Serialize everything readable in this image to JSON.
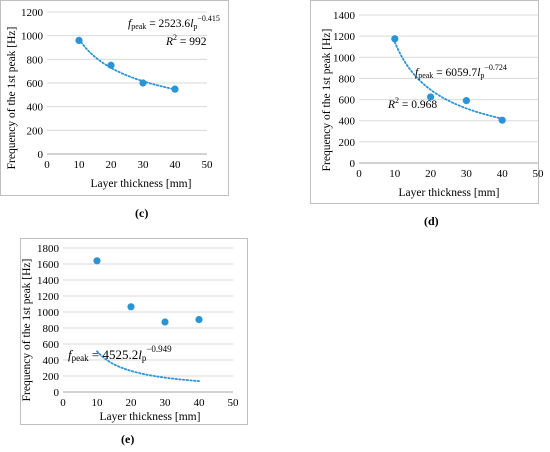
{
  "chart_data": [
    {
      "type": "scatter",
      "caption": "(c)",
      "xlabel": "Layer thickness [mm]",
      "ylabel": "Frequency of the 1st peak [Hz]",
      "xlim": [
        0,
        50
      ],
      "ylim": [
        0,
        1200
      ],
      "xticks": [
        "0",
        "10",
        "20",
        "30",
        "40",
        "50"
      ],
      "yticks": [
        "0",
        "200",
        "400",
        "600",
        "800",
        "1000",
        "1200"
      ],
      "grid": true,
      "series": [
        {
          "x": [
            10,
            20,
            30,
            40
          ],
          "y": [
            960,
            750,
            600,
            548
          ],
          "color": "#2a94d4"
        }
      ],
      "trendline": {
        "type": "power",
        "a": 2523.6,
        "b": -0.415,
        "style": "dotted"
      },
      "annotations": [
        {
          "lines": [
            "f_peak = 2523.6l_p^-0.415",
            "R² = 992"
          ]
        }
      ]
    },
    {
      "type": "scatter",
      "caption": "(d)",
      "xlabel": "Layer thickness [mm]",
      "ylabel": "Frequency of the 1st peak [Hz]",
      "xlim": [
        0,
        50
      ],
      "ylim": [
        0,
        1400
      ],
      "xticks": [
        "0",
        "10",
        "20",
        "30",
        "40",
        "50"
      ],
      "yticks": [
        "0",
        "200",
        "400",
        "600",
        "800",
        "1000",
        "1200",
        "1400"
      ],
      "grid": true,
      "series": [
        {
          "x": [
            10,
            20,
            30,
            40
          ],
          "y": [
            1175,
            625,
            590,
            405
          ],
          "color": "#2a94d4"
        }
      ],
      "trendline": {
        "type": "power",
        "a": 6059.7,
        "b": -0.724,
        "style": "dotted"
      },
      "annotations": [
        {
          "lines": [
            "f_peak = 6059.7l_p^-0.724",
            "R² = 0.968"
          ]
        }
      ]
    },
    {
      "type": "scatter",
      "caption": "(e)",
      "xlabel": "Layer thickness [mm]",
      "ylabel": "Frequency of the 1st peak [Hz]",
      "xlim": [
        0,
        50
      ],
      "ylim": [
        0,
        1800
      ],
      "xticks": [
        "0",
        "10",
        "20",
        "30",
        "40",
        "50"
      ],
      "yticks": [
        "0",
        "200",
        "400",
        "600",
        "800",
        "1000",
        "1200",
        "1400",
        "1600",
        "1800"
      ],
      "grid": true,
      "series": [
        {
          "x": [
            10,
            20,
            30,
            40
          ],
          "y": [
            1640,
            1065,
            875,
            905
          ],
          "color": "#2a94d4"
        }
      ],
      "trendline": {
        "type": "power",
        "a": 4525.2,
        "b": -0.949,
        "style": "dotted"
      },
      "annotations": [
        {
          "lines": [
            "f_peak = 4525.2l_p^-0.949"
          ]
        }
      ]
    }
  ],
  "equations": {
    "c": {
      "f": "f",
      "sub": "peak",
      "eq": " = 2523.6",
      "l": "l",
      "lsub": "p",
      "exp": "−0.415",
      "r2_label": "R",
      "r2_exp": "2",
      "r2_val": " = 992"
    },
    "d": {
      "f": "f",
      "sub": "peak",
      "eq": " = 6059.7",
      "l": "l",
      "lsub": "p",
      "exp": "−0.724",
      "r2_label": "R",
      "r2_exp": "2",
      "r2_val": " = 0.968"
    },
    "e": {
      "f": "f",
      "sub": "peak",
      "eq": " = 4525.2",
      "l": "l",
      "lsub": "p",
      "exp": "−0.949"
    }
  },
  "colors": {
    "marker": "#2a94d4",
    "trend": "#2a94d4",
    "grid": "#d9d9d9",
    "frame": "#bfbfbf"
  }
}
